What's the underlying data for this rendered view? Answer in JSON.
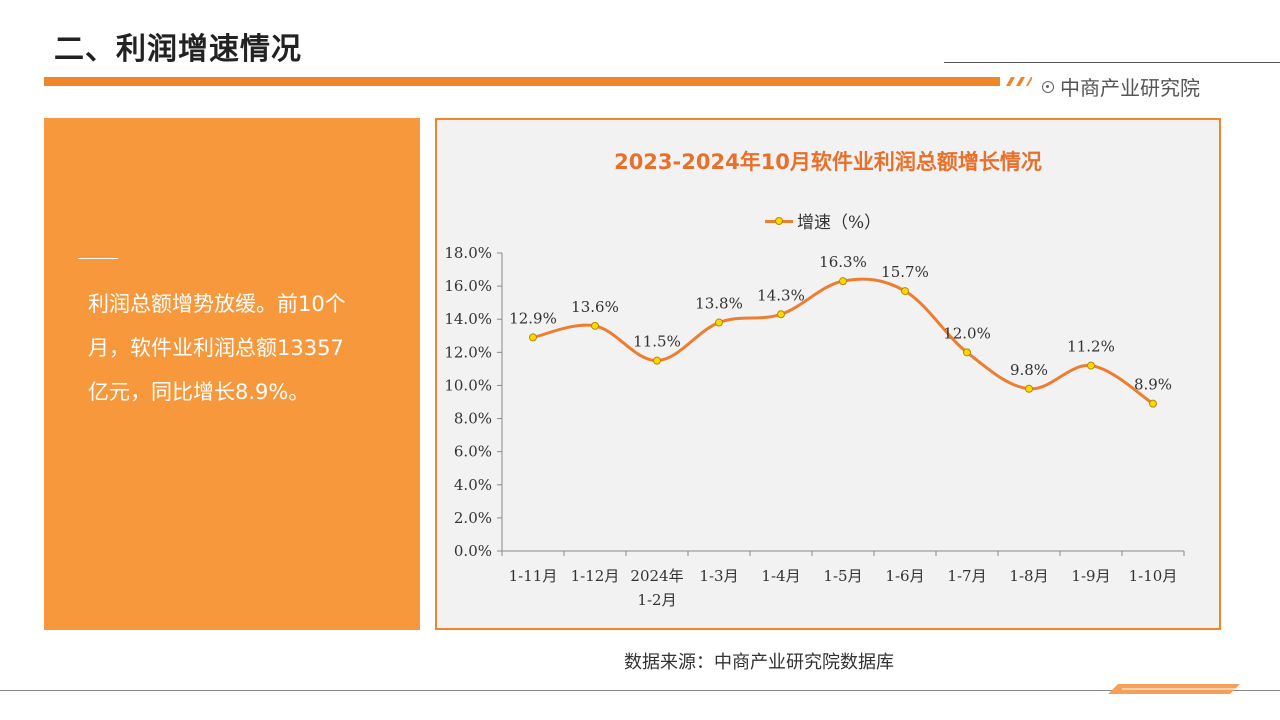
{
  "header": {
    "title": "二、利润增速情况",
    "brand": "中商产业研究院"
  },
  "summary": {
    "text": "利润总额增势放缓。前10个月，软件业利润总额13357亿元，同比增长8.9%。"
  },
  "source": "数据来源：中商产业研究院数据库",
  "colors": {
    "accent": "#f0862a",
    "panel": "#f8983c",
    "line": "#ed7d31",
    "marker": "#ffd700"
  },
  "chart_data": {
    "type": "line",
    "title": "2023-2024年10月软件业利润总额增长情况",
    "legend_position": "top",
    "categories": [
      [
        "1-11月"
      ],
      [
        "1-12月"
      ],
      [
        "2024年",
        "1-2月"
      ],
      [
        "1-3月"
      ],
      [
        "1-4月"
      ],
      [
        "1-5月"
      ],
      [
        "1-6月"
      ],
      [
        "1-7月"
      ],
      [
        "1-8月"
      ],
      [
        "1-9月"
      ],
      [
        "1-10月"
      ]
    ],
    "series": [
      {
        "name": "增速（%）",
        "values": [
          12.9,
          13.6,
          11.5,
          13.8,
          14.3,
          16.3,
          15.7,
          12.0,
          9.8,
          11.2,
          8.9
        ],
        "labels": [
          "12.9%",
          "13.6%",
          "11.5%",
          "13.8%",
          "14.3%",
          "16.3%",
          "15.7%",
          "12.0%",
          "9.8%",
          "11.2%",
          "8.9%"
        ]
      }
    ],
    "ylim": [
      0,
      18
    ],
    "yticks": [
      "0.0%",
      "2.0%",
      "4.0%",
      "6.0%",
      "8.0%",
      "10.0%",
      "12.0%",
      "14.0%",
      "16.0%",
      "18.0%"
    ],
    "grid": false,
    "smooth": true
  }
}
